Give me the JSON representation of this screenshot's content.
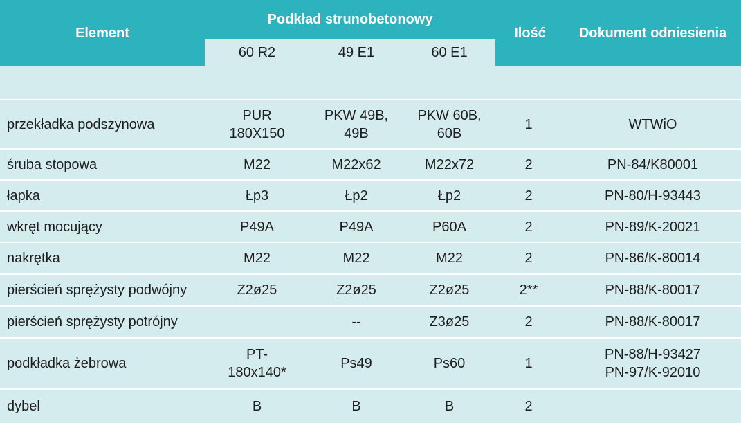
{
  "header": {
    "element": "Element",
    "group": "Podkład strunobetonowy",
    "variants": [
      "60 R2",
      "49 E1",
      "60 E1"
    ],
    "quantity": "Ilość",
    "reference": "Dokument odniesienia"
  },
  "rows": [
    {
      "element": "przekładka podszynowa",
      "a": [
        "PUR",
        "180X150"
      ],
      "b": [
        "PKW 49B,",
        "49B"
      ],
      "c": [
        "PKW 60B,",
        "60B"
      ],
      "qty": "1",
      "ref": [
        "WTWiO"
      ]
    },
    {
      "element": "śruba stopowa",
      "a": [
        "M22"
      ],
      "b": [
        "M22x62"
      ],
      "c": [
        "M22x72"
      ],
      "qty": "2",
      "ref": [
        "PN-84/K80001"
      ]
    },
    {
      "element": "łapka",
      "a": [
        "Łp3"
      ],
      "b": [
        "Łp2"
      ],
      "c": [
        "Łp2"
      ],
      "qty": "2",
      "ref": [
        "PN-80/H-93443"
      ]
    },
    {
      "element": "wkręt mocujący",
      "a": [
        "P49A"
      ],
      "b": [
        "P49A"
      ],
      "c": [
        "P60A"
      ],
      "qty": "2",
      "ref": [
        "PN-89/K-20021"
      ]
    },
    {
      "element": "nakrętka",
      "a": [
        "M22"
      ],
      "b": [
        "M22"
      ],
      "c": [
        "M22"
      ],
      "qty": "2",
      "ref": [
        "PN-86/K-80014"
      ]
    },
    {
      "element": "pierścień sprężysty podwójny",
      "a": [
        "Z2ø25"
      ],
      "b": [
        "Z2ø25"
      ],
      "c": [
        "Z2ø25"
      ],
      "qty": "2**",
      "ref": [
        "PN-88/K-80017"
      ]
    },
    {
      "element": "pierścień sprężysty potrójny",
      "a": [
        ""
      ],
      "b": [
        "--"
      ],
      "c": [
        "Z3ø25"
      ],
      "qty": "2",
      "ref": [
        "PN-88/K-80017"
      ]
    },
    {
      "element": "podkładka żebrowa",
      "a": [
        "PT-",
        "180x140*"
      ],
      "b": [
        "Ps49"
      ],
      "c": [
        "Ps60"
      ],
      "qty": "1",
      "ref": [
        "PN-88/H-93427",
        "PN-97/K-92010"
      ]
    },
    {
      "element": "dybel",
      "a": [
        "B"
      ],
      "b": [
        "B"
      ],
      "c": [
        "B"
      ],
      "qty": "2",
      "ref": [
        ""
      ]
    }
  ]
}
